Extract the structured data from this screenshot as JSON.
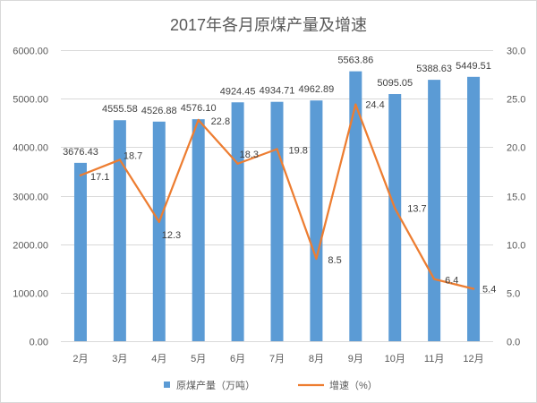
{
  "chart_data": {
    "type": "bar",
    "title": "2017年各月原煤产量及增速",
    "categories": [
      "2月",
      "3月",
      "4月",
      "5月",
      "6月",
      "7月",
      "8月",
      "9月",
      "10月",
      "11月",
      "12月"
    ],
    "series": [
      {
        "name": "原煤产量（万吨）",
        "type": "bar",
        "axis": "left",
        "color": "#5B9BD5",
        "values": [
          3676.43,
          4555.58,
          4526.88,
          4576.1,
          4924.45,
          4934.71,
          4962.89,
          5563.86,
          5095.05,
          5388.63,
          5449.51
        ]
      },
      {
        "name": "增速（%）",
        "type": "line",
        "axis": "right",
        "color": "#ED7D31",
        "values": [
          17.1,
          18.7,
          12.3,
          22.8,
          18.3,
          19.8,
          8.5,
          24.4,
          13.7,
          6.4,
          5.4
        ]
      }
    ],
    "y_left": {
      "ylim": [
        0,
        6000
      ],
      "ticks": [
        "0.00",
        "1000.00",
        "2000.00",
        "3000.00",
        "4000.00",
        "5000.00",
        "6000.00"
      ]
    },
    "y_right": {
      "ylim": [
        0,
        30
      ],
      "ticks": [
        "0.0",
        "5.0",
        "10.0",
        "15.0",
        "20.0",
        "25.0",
        "30.0"
      ]
    },
    "grid": true,
    "legend": "bottom",
    "data_labels": true
  }
}
